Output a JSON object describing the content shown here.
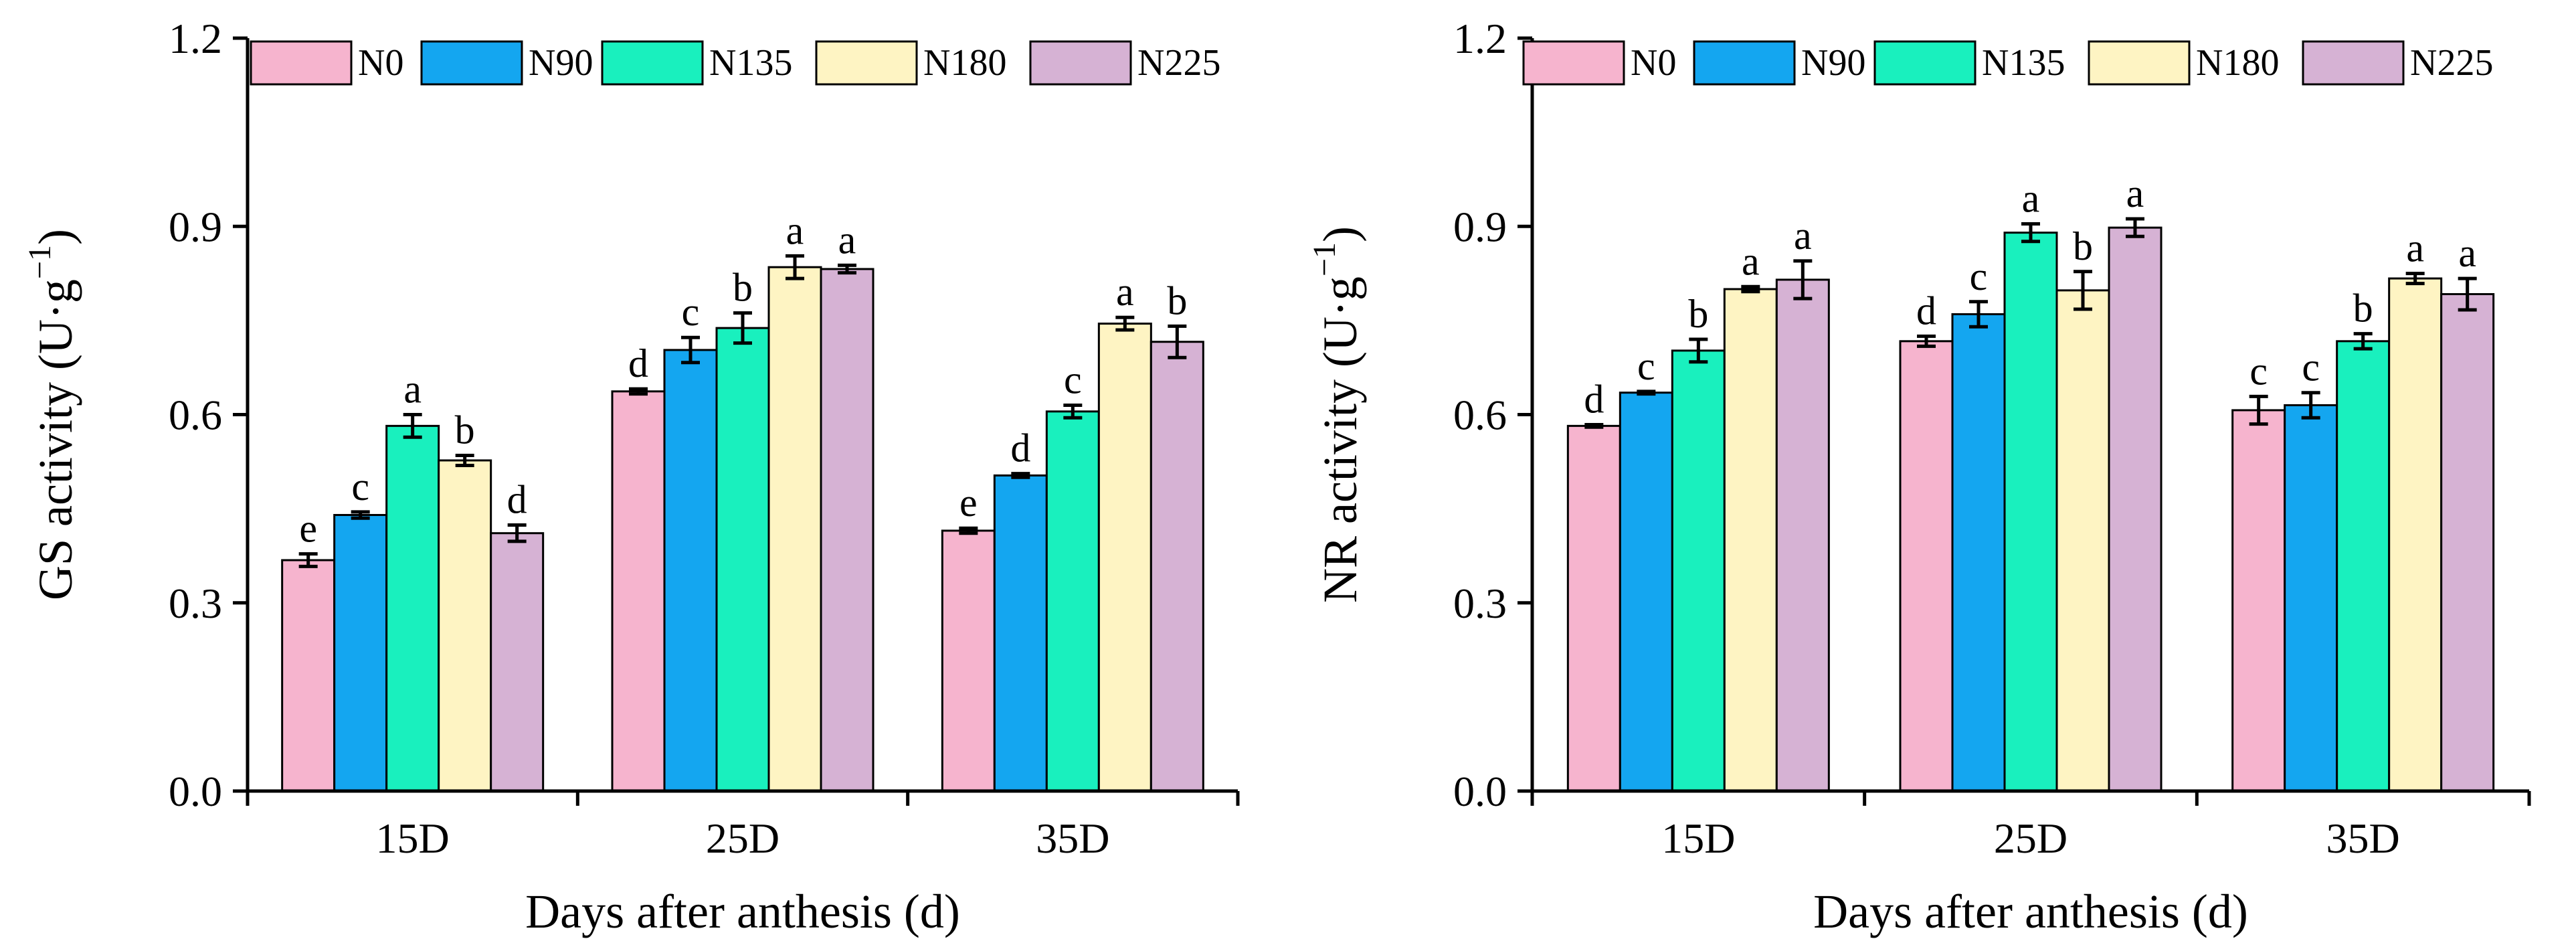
{
  "chart_data": [
    {
      "type": "bar",
      "id": "gs",
      "ylabel": "GS activity (U·g⁻¹)",
      "ylabel_main": "GS activity (U·g",
      "ylabel_sup": "−1",
      "ylabel_end": ")",
      "xlabel": "Days after anthesis (d)",
      "ylim": [
        0,
        1.2
      ],
      "yticks": [
        "0.0",
        "0.3",
        "0.6",
        "0.9",
        "1.2"
      ],
      "ytick_values": [
        0,
        0.3,
        0.6,
        0.9,
        1.2
      ],
      "categories": [
        "15D",
        "25D",
        "35D"
      ],
      "legend_position": "top",
      "series": [
        {
          "name": "N0",
          "color": "#F6B4CE",
          "values": [
            0.368,
            0.637,
            0.415
          ],
          "errors": [
            0.01,
            0.004,
            0.004
          ],
          "letters": [
            "e",
            "d",
            "e"
          ]
        },
        {
          "name": "N90",
          "color": "#14A6F0",
          "values": [
            0.44,
            0.703,
            0.503
          ],
          "errors": [
            0.005,
            0.02,
            0.003
          ],
          "letters": [
            "c",
            "c",
            "d"
          ]
        },
        {
          "name": "N135",
          "color": "#19F0BE",
          "values": [
            0.582,
            0.738,
            0.605
          ],
          "errors": [
            0.018,
            0.024,
            0.01
          ],
          "letters": [
            "a",
            "b",
            "c"
          ]
        },
        {
          "name": "N180",
          "color": "#FEF4C3",
          "values": [
            0.527,
            0.835,
            0.745
          ],
          "errors": [
            0.008,
            0.018,
            0.01
          ],
          "letters": [
            "b",
            "a",
            "a"
          ]
        },
        {
          "name": "N225",
          "color": "#D6B2D4",
          "values": [
            0.411,
            0.832,
            0.716
          ],
          "errors": [
            0.013,
            0.006,
            0.025
          ],
          "letters": [
            "d",
            "a",
            "b"
          ]
        }
      ]
    },
    {
      "type": "bar",
      "id": "nr",
      "ylabel": "NR activity (U·g⁻¹)",
      "ylabel_main": "NR activity (U·g",
      "ylabel_sup": "−1",
      "ylabel_end": ")",
      "xlabel": "Days after anthesis (d)",
      "ylim": [
        0,
        1.2
      ],
      "yticks": [
        "0.0",
        "0.3",
        "0.6",
        "0.9",
        "1.2"
      ],
      "ytick_values": [
        0,
        0.3,
        0.6,
        0.9,
        1.2
      ],
      "categories": [
        "15D",
        "25D",
        "35D"
      ],
      "legend_position": "top",
      "series": [
        {
          "name": "N0",
          "color": "#F6B4CE",
          "values": [
            0.582,
            0.717,
            0.607
          ],
          "errors": [
            0.002,
            0.008,
            0.022
          ],
          "letters": [
            "d",
            "d",
            "c"
          ]
        },
        {
          "name": "N90",
          "color": "#14A6F0",
          "values": [
            0.635,
            0.76,
            0.615
          ],
          "errors": [
            0.002,
            0.02,
            0.02
          ],
          "letters": [
            "c",
            "c",
            "c"
          ]
        },
        {
          "name": "N135",
          "color": "#19F0BE",
          "values": [
            0.702,
            0.89,
            0.717
          ],
          "errors": [
            0.018,
            0.014,
            0.012
          ],
          "letters": [
            "b",
            "a",
            "b"
          ]
        },
        {
          "name": "N180",
          "color": "#FEF4C3",
          "values": [
            0.8,
            0.798,
            0.817
          ],
          "errors": [
            0.004,
            0.03,
            0.008
          ],
          "letters": [
            "a",
            "b",
            "a"
          ]
        },
        {
          "name": "N225",
          "color": "#D6B2D4",
          "values": [
            0.815,
            0.898,
            0.792
          ],
          "errors": [
            0.03,
            0.014,
            0.025
          ],
          "letters": [
            "a",
            "a",
            "a"
          ]
        }
      ]
    }
  ]
}
